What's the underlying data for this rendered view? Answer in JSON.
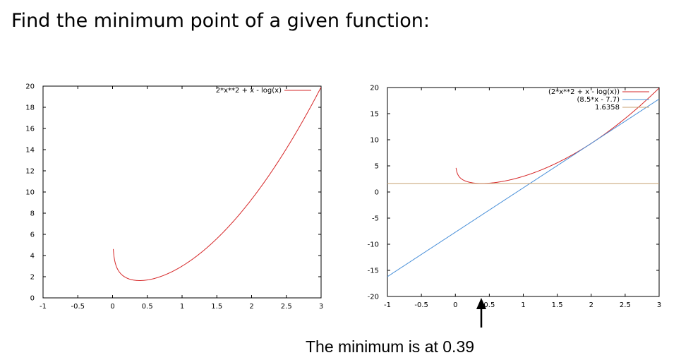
{
  "title": "Find the minimum point of a given function:",
  "caption": "The minimum is at 0.39",
  "marker_x": 0.39,
  "chart_data": [
    {
      "type": "line",
      "xlim": [
        -1,
        3
      ],
      "ylim": [
        0,
        20
      ],
      "xticks": [
        "-1",
        "-0.5",
        "0",
        "0.5",
        "1",
        "1.5",
        "2",
        "2.5",
        "3"
      ],
      "yticks": [
        "0",
        "2",
        "4",
        "6",
        "8",
        "10",
        "12",
        "14",
        "16",
        "18",
        "20"
      ],
      "grid": false,
      "legend_position": "top-right",
      "series": [
        {
          "name": "2*x**2 + x - log(x)",
          "color": "#d62728",
          "formula": "2*x*x + x - Math.log(x)",
          "x_from": 0.01,
          "x_to": 3
        }
      ]
    },
    {
      "type": "line",
      "xlim": [
        -1,
        3
      ],
      "ylim": [
        -20,
        20
      ],
      "xticks": [
        "-1",
        "-0.5",
        "0",
        "0.5",
        "1",
        "1.5",
        "2",
        "2.5",
        "3"
      ],
      "yticks": [
        "-20",
        "-15",
        "-10",
        "-5",
        "0",
        "5",
        "10",
        "15",
        "20"
      ],
      "grid": false,
      "legend_position": "top-right",
      "series": [
        {
          "name": "(2*x**2 + x - log(x))",
          "color": "#d62728",
          "formula": "2*x*x + x - Math.log(x)",
          "x_from": 0.01,
          "x_to": 3
        },
        {
          "name": "(8.5*x - 7.7)",
          "color": "#4a90d9",
          "formula": "8.5*x - 7.7",
          "x_from": -1,
          "x_to": 3
        },
        {
          "name": "1.6358",
          "color": "#c8a070",
          "formula": "1.6358",
          "x_from": -1,
          "x_to": 3
        }
      ]
    }
  ]
}
